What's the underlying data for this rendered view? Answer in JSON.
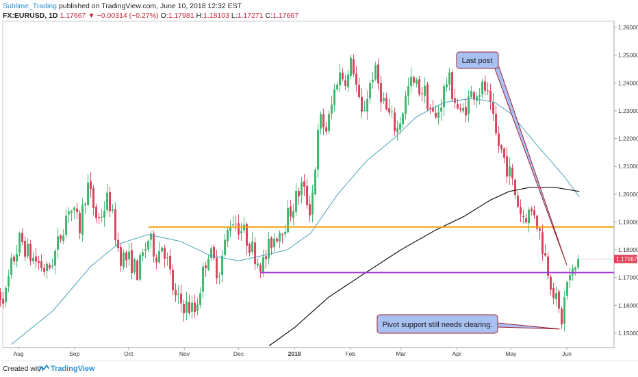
{
  "header": {
    "author": "Sublime_Trading",
    "published": " published on TradingView.com, June 10, 2018 12:32 EST",
    "symbol": "FX:EURUSD, 1D",
    "last": "1.17667",
    "change": "−0.00314 (−0.27%)",
    "o_label": "O:",
    "o_value": "1.17981",
    "h_label": "H:",
    "h_value": "1.18103",
    "l_label": "L:",
    "l_value": "1.17271",
    "c_label": "C:",
    "c_value": "1.17667"
  },
  "footer": {
    "created_with": "Created with",
    "brand": "TradingView"
  },
  "colors": {
    "up": "#3fb86f",
    "down": "#d6475d",
    "ma_fast": "#4aa3b8",
    "ma_slow": "#111111",
    "resistance": "#f0a30a",
    "support": "#9b30d8",
    "callout_fill": "#a9c0f2",
    "callout_stroke": "#9e1f32",
    "price_badge": "#e0435a"
  },
  "chart_data": {
    "type": "candlestick",
    "symbol": "FX:EURUSD",
    "interval": "1D",
    "ylim": [
      1.144,
      1.262
    ],
    "y_ticks": [
      "1.15000",
      "1.16000",
      "1.17000",
      "1.18000",
      "1.19000",
      "1.20000",
      "1.21000",
      "1.22000",
      "1.23000",
      "1.24000",
      "1.25000",
      "1.26000"
    ],
    "x_ticks": [
      "Aug",
      "Sep",
      "Oct",
      "Nov",
      "Dec",
      "2018",
      "Feb",
      "Mar",
      "Apr",
      "May",
      "Jun"
    ],
    "last_price_label": "1.17667",
    "price_path": [
      [
        "2017-07-25",
        1.164
      ],
      [
        "2017-07-28",
        1.174
      ],
      [
        "2017-08-02",
        1.184
      ],
      [
        "2017-08-07",
        1.178
      ],
      [
        "2017-08-11",
        1.176
      ],
      [
        "2017-08-17",
        1.172
      ],
      [
        "2017-08-22",
        1.18
      ],
      [
        "2017-08-29",
        1.196
      ],
      [
        "2017-09-04",
        1.188
      ],
      [
        "2017-09-08",
        1.204
      ],
      [
        "2017-09-14",
        1.19
      ],
      [
        "2017-09-20",
        1.199
      ],
      [
        "2017-09-26",
        1.178
      ],
      [
        "2017-10-02",
        1.176
      ],
      [
        "2017-10-06",
        1.172
      ],
      [
        "2017-10-12",
        1.184
      ],
      [
        "2017-10-17",
        1.178
      ],
      [
        "2017-10-20",
        1.183
      ],
      [
        "2017-10-27",
        1.162
      ],
      [
        "2017-11-07",
        1.158
      ],
      [
        "2017-11-14",
        1.18
      ],
      [
        "2017-11-20",
        1.172
      ],
      [
        "2017-11-27",
        1.192
      ],
      [
        "2017-12-04",
        1.186
      ],
      [
        "2017-12-12",
        1.176
      ],
      [
        "2017-12-15",
        1.175
      ],
      [
        "2017-12-19",
        1.183
      ],
      [
        "2017-12-27",
        1.19
      ],
      [
        "2018-01-05",
        1.203
      ],
      [
        "2018-01-10",
        1.194
      ],
      [
        "2018-01-15",
        1.227
      ],
      [
        "2018-01-19",
        1.223
      ],
      [
        "2018-01-25",
        1.243
      ],
      [
        "2018-01-31",
        1.242
      ],
      [
        "2018-02-02",
        1.249
      ],
      [
        "2018-02-07",
        1.227
      ],
      [
        "2018-02-14",
        1.245
      ],
      [
        "2018-02-21",
        1.23
      ],
      [
        "2018-02-27",
        1.223
      ],
      [
        "2018-03-06",
        1.24
      ],
      [
        "2018-03-14",
        1.237
      ],
      [
        "2018-03-20",
        1.226
      ],
      [
        "2018-03-27",
        1.242
      ],
      [
        "2018-04-03",
        1.228
      ],
      [
        "2018-04-10",
        1.237
      ],
      [
        "2018-04-17",
        1.238
      ],
      [
        "2018-04-23",
        1.22
      ],
      [
        "2018-04-30",
        1.208
      ],
      [
        "2018-05-07",
        1.192
      ],
      [
        "2018-05-14",
        1.194
      ],
      [
        "2018-05-22",
        1.172
      ],
      [
        "2018-05-29",
        1.154
      ],
      [
        "2018-06-01",
        1.168
      ],
      [
        "2018-06-05",
        1.172
      ],
      [
        "2018-06-08",
        1.1767
      ]
    ],
    "ma_fast": [
      [
        "2017-07-28",
        1.146
      ],
      [
        "2017-08-20",
        1.158
      ],
      [
        "2017-09-10",
        1.174
      ],
      [
        "2017-09-25",
        1.182
      ],
      [
        "2017-10-12",
        1.1855
      ],
      [
        "2017-10-30",
        1.183
      ],
      [
        "2017-11-15",
        1.178
      ],
      [
        "2017-12-01",
        1.176
      ],
      [
        "2017-12-15",
        1.178
      ],
      [
        "2017-12-28",
        1.18
      ],
      [
        "2018-01-10",
        1.186
      ],
      [
        "2018-01-25",
        1.2
      ],
      [
        "2018-02-10",
        1.212
      ],
      [
        "2018-02-25",
        1.22
      ],
      [
        "2018-03-10",
        1.228
      ],
      [
        "2018-03-25",
        1.233
      ],
      [
        "2018-04-10",
        1.2345
      ],
      [
        "2018-04-22",
        1.233
      ],
      [
        "2018-05-01",
        1.229
      ],
      [
        "2018-05-15",
        1.218
      ],
      [
        "2018-05-31",
        1.206
      ],
      [
        "2018-06-08",
        1.199
      ]
    ],
    "ma_slow": [
      [
        "2017-12-18",
        1.1455
      ],
      [
        "2018-01-01",
        1.152
      ],
      [
        "2018-01-20",
        1.163
      ],
      [
        "2018-02-10",
        1.172
      ],
      [
        "2018-03-01",
        1.18
      ],
      [
        "2018-03-20",
        1.187
      ],
      [
        "2018-04-05",
        1.192
      ],
      [
        "2018-04-20",
        1.198
      ],
      [
        "2018-04-30",
        1.201
      ],
      [
        "2018-05-12",
        1.2025
      ],
      [
        "2018-05-25",
        1.2025
      ],
      [
        "2018-06-08",
        1.201
      ]
    ],
    "levels": [
      {
        "kind": "resistance",
        "start": "2017-10-12",
        "price": 1.1882
      },
      {
        "kind": "support",
        "start": "2017-12-13",
        "price": 1.1718
      }
    ],
    "annotations": [
      {
        "text": "Last post",
        "point_to": [
          "2018-06-01",
          1.1745
        ]
      },
      {
        "text": "Pivot support still needs clearing.",
        "point_to": [
          "2018-05-28",
          1.1515
        ]
      }
    ]
  }
}
